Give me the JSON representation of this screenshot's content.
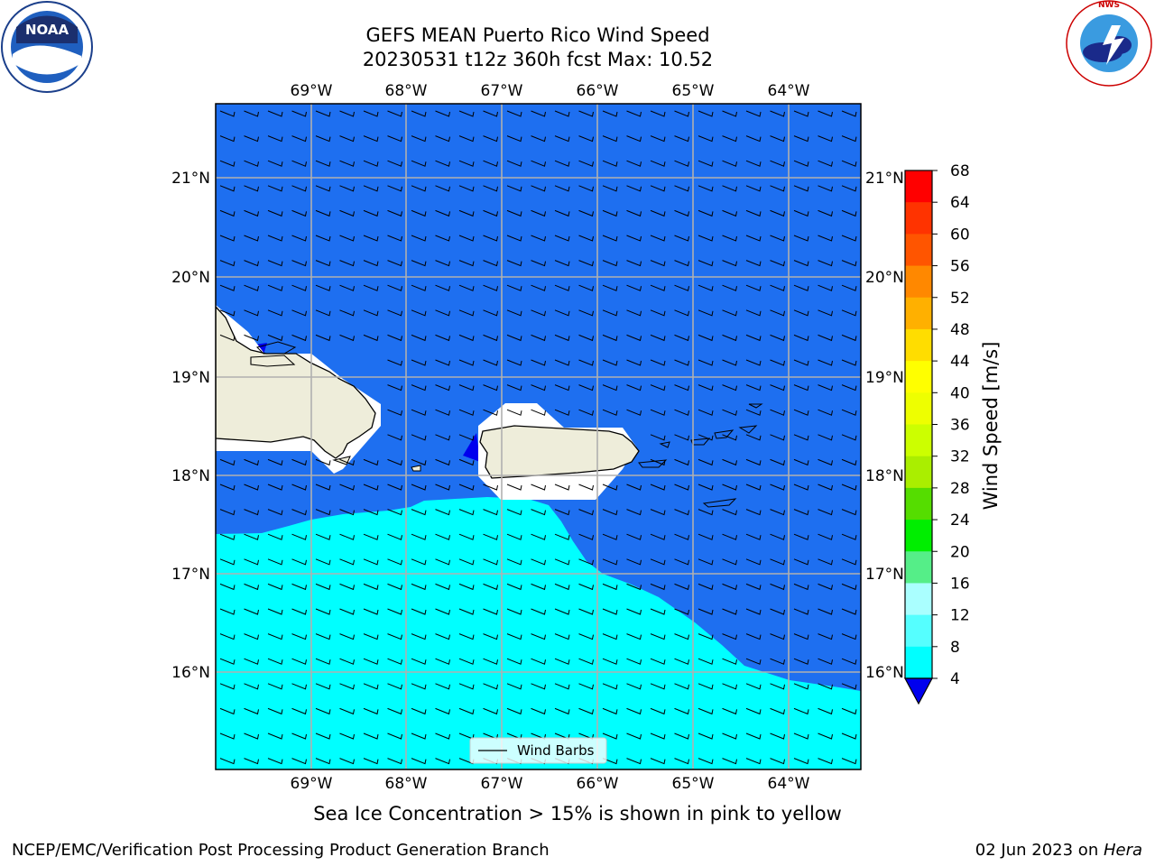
{
  "header": {
    "title_line1": "GEFS MEAN Puerto Rico Wind Speed",
    "title_line2": "20230531 t12z 360h fcst   Max: 10.52"
  },
  "logos": {
    "left": {
      "text": "NOAA",
      "ring_text": "NATIONAL OCEANIC AND ATMOSPHERIC ADMINISTRATION · U.S. DEPARTMENT OF COMMERCE"
    },
    "right": {
      "ring_text": "NATIONAL WEATHER SERVICE"
    }
  },
  "map": {
    "lon_labels": [
      "69°W",
      "68°W",
      "67°W",
      "66°W",
      "65°W",
      "64°W"
    ],
    "lat_labels": [
      "21°N",
      "20°N",
      "19°N",
      "18°N",
      "17°N",
      "16°N"
    ],
    "legend_label": "Wind Barbs",
    "colors": {
      "deep": "#0000ee",
      "low": "#1e6ff0",
      "mid": "#00ffff",
      "land": "#eeedda"
    }
  },
  "colorbar": {
    "title": "Wind Speed [m/s]",
    "ticks": [
      "68",
      "64",
      "60",
      "56",
      "52",
      "48",
      "44",
      "40",
      "36",
      "32",
      "28",
      "24",
      "20",
      "16",
      "12",
      "8",
      "4"
    ],
    "colors": [
      "#ff0000",
      "#ff3300",
      "#ff5500",
      "#ff8800",
      "#ffb000",
      "#ffdd00",
      "#ffff00",
      "#eeff00",
      "#ccff00",
      "#aaee00",
      "#55dd00",
      "#00ee00",
      "#55ee88",
      "#aaffff",
      "#55ffff",
      "#00ffff",
      "#1e6ff0"
    ],
    "extend_color": "#0000ee"
  },
  "footer": {
    "subtitle": "Sea Ice Concentration > 15% is shown in pink to yellow",
    "left": "NCEP/EMC/Verification Post Processing Product Generation Branch",
    "right_date": "02 Jun 2023 on ",
    "right_host": "Hera"
  }
}
